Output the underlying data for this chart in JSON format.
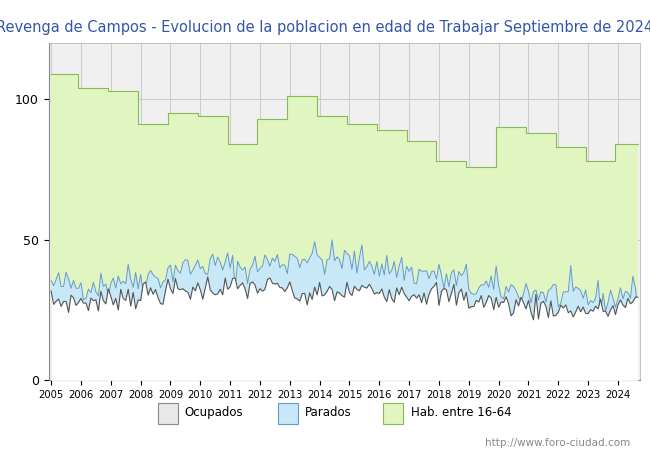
{
  "title_line1": "Revenga de Campos - Evolucion de la poblacion en edad de Trabajar Septiembre de 2024",
  "title_color": "#3355aa",
  "title_fontsize": 10.5,
  "ylim": [
    0,
    120
  ],
  "yticks": [
    0,
    50,
    100
  ],
  "watermark": "http://www.foro-ciudad.com",
  "legend_labels": [
    "Ocupados",
    "Parados",
    "Hab. entre 16-64"
  ],
  "hab_color_fill": "#e0f5c0",
  "hab_color_edge": "#88bb55",
  "parados_color_fill": "#c8e8f8",
  "parados_color_edge": "#6699cc",
  "ocupados_color_fill": "#e8e8e8",
  "ocupados_color_edge": "#888888",
  "ocupados_line_color": "#555555",
  "plot_bg": "#f0f0f0",
  "grid_color": "#cccccc",
  "hab_annual": {
    "2005": 109,
    "2006": 104,
    "2007": 103,
    "2008": 91,
    "2009": 95,
    "2010": 94,
    "2011": 84,
    "2012": 93,
    "2013": 101,
    "2014": 94,
    "2015": 91,
    "2016": 89,
    "2017": 85,
    "2018": 78,
    "2019": 76,
    "2020": 90,
    "2021": 88,
    "2022": 83,
    "2023": 78,
    "2024": 84
  },
  "parados_base_by_year": {
    "2005": 34,
    "2006": 34,
    "2007": 36,
    "2008": 37,
    "2009": 40,
    "2010": 41,
    "2011": 40,
    "2012": 42,
    "2013": 44,
    "2014": 43,
    "2015": 42,
    "2016": 40,
    "2017": 38,
    "2018": 36,
    "2019": 33,
    "2020": 32,
    "2021": 31,
    "2022": 30,
    "2023": 29,
    "2024": 31
  },
  "ocupados_base_by_year": {
    "2005": 28,
    "2006": 28,
    "2007": 30,
    "2008": 31,
    "2009": 32,
    "2010": 33,
    "2011": 33,
    "2012": 33,
    "2013": 30,
    "2014": 31,
    "2015": 32,
    "2016": 32,
    "2017": 31,
    "2018": 30,
    "2019": 28,
    "2020": 27,
    "2021": 26,
    "2022": 25,
    "2023": 25,
    "2024": 27
  }
}
